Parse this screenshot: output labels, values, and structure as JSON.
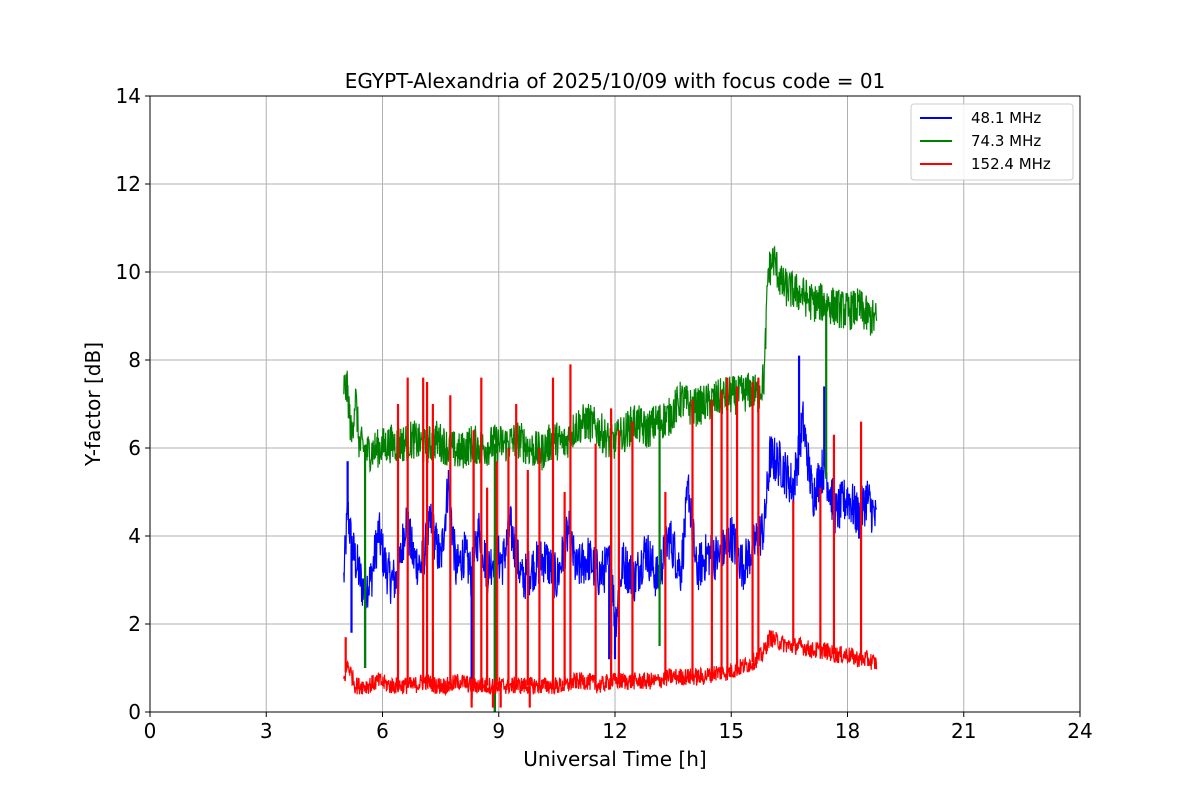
{
  "chart_data": {
    "type": "line",
    "title": "EGYPT-Alexandria of 2025/10/09 with focus code = 01",
    "xlabel": "Universal Time [h]",
    "ylabel": "Y-factor [dB]",
    "xlim": [
      0,
      24
    ],
    "ylim": [
      0,
      14
    ],
    "xticks": [
      0,
      3,
      6,
      9,
      12,
      15,
      18,
      21,
      24
    ],
    "yticks": [
      0,
      2,
      4,
      6,
      8,
      10,
      12,
      14
    ],
    "grid": true,
    "legend_position": "top-right",
    "series": [
      {
        "name": "  48.1 MHz",
        "color": "#0000ff",
        "x": [
          5.0,
          5.1,
          5.2,
          5.35,
          5.5,
          5.7,
          5.9,
          6.05,
          6.2,
          6.4,
          6.6,
          6.8,
          7.0,
          7.25,
          7.5,
          7.7,
          7.9,
          8.1,
          8.3,
          8.5,
          8.7,
          8.9,
          9.1,
          9.3,
          9.6,
          9.9,
          10.2,
          10.5,
          10.8,
          11.0,
          11.3,
          11.6,
          11.9,
          12.0,
          12.2,
          12.5,
          12.8,
          13.1,
          13.4,
          13.7,
          13.9,
          14.1,
          14.4,
          14.7,
          15.0,
          15.3,
          15.6,
          15.85,
          16.0,
          16.3,
          16.6,
          16.85,
          17.1,
          17.4,
          17.7,
          18.0,
          18.3,
          18.5,
          18.75
        ],
        "y": [
          3.0,
          4.6,
          3.8,
          3.3,
          2.8,
          3.0,
          4.1,
          3.4,
          3.0,
          3.0,
          4.4,
          3.5,
          3.3,
          4.3,
          3.4,
          5.2,
          3.2,
          3.6,
          3.1,
          4.2,
          3.2,
          3.6,
          3.4,
          4.2,
          3.0,
          3.3,
          3.5,
          3.0,
          4.1,
          3.2,
          3.5,
          3.1,
          3.4,
          2.0,
          3.4,
          3.0,
          3.7,
          3.0,
          4.0,
          3.2,
          5.1,
          3.2,
          3.6,
          3.5,
          4.0,
          3.3,
          3.8,
          4.2,
          5.8,
          5.6,
          5.1,
          6.6,
          4.9,
          5.6,
          4.5,
          4.9,
          4.4,
          4.9,
          4.3
        ]
      },
      {
        "name": "  74.3 MHz",
        "color": "#008000",
        "x": [
          5.0,
          5.1,
          5.2,
          5.3,
          5.4,
          5.6,
          5.9,
          6.2,
          6.5,
          6.8,
          7.1,
          7.4,
          7.7,
          8.0,
          8.3,
          8.6,
          8.9,
          9.2,
          9.5,
          9.8,
          10.1,
          10.4,
          10.7,
          11.0,
          11.3,
          11.6,
          11.9,
          12.2,
          12.5,
          12.8,
          13.1,
          13.4,
          13.7,
          14.0,
          14.3,
          14.6,
          14.9,
          15.2,
          15.5,
          15.7,
          15.85,
          15.95,
          16.1,
          16.3,
          16.5,
          16.8,
          17.1,
          17.4,
          17.7,
          18.0,
          18.3,
          18.5,
          18.75
        ],
        "y": [
          7.4,
          7.3,
          6.2,
          7.2,
          6.1,
          5.9,
          6.0,
          6.1,
          6.1,
          6.2,
          6.0,
          6.2,
          6.0,
          5.9,
          6.1,
          6.0,
          6.1,
          6.1,
          6.2,
          6.0,
          5.9,
          6.2,
          6.1,
          6.5,
          6.6,
          6.4,
          6.1,
          6.3,
          6.6,
          6.4,
          6.6,
          6.7,
          7.1,
          6.9,
          7.0,
          7.1,
          7.2,
          7.2,
          7.3,
          7.2,
          7.6,
          10.0,
          10.3,
          9.7,
          9.6,
          9.5,
          9.3,
          9.3,
          9.2,
          9.1,
          9.2,
          9.0,
          8.9
        ]
      },
      {
        "name": "152.4 MHz",
        "color": "#ff0000",
        "x": [
          5.0,
          5.1,
          5.3,
          5.6,
          5.9,
          6.2,
          6.5,
          6.8,
          7.1,
          7.4,
          7.7,
          8.0,
          8.3,
          8.6,
          8.9,
          9.2,
          9.5,
          9.8,
          10.1,
          10.4,
          10.7,
          11.0,
          11.3,
          11.6,
          11.9,
          12.2,
          12.5,
          12.8,
          13.1,
          13.4,
          13.7,
          14.0,
          14.3,
          14.6,
          14.9,
          15.2,
          15.5,
          15.8,
          16.0,
          16.2,
          16.5,
          16.8,
          17.1,
          17.4,
          17.7,
          18.0,
          18.3,
          18.5,
          18.75
        ],
        "y": [
          0.7,
          1.1,
          0.6,
          0.6,
          0.7,
          0.6,
          0.6,
          0.6,
          0.7,
          0.6,
          0.6,
          0.7,
          0.6,
          0.6,
          0.6,
          0.6,
          0.6,
          0.6,
          0.6,
          0.6,
          0.6,
          0.7,
          0.7,
          0.6,
          0.7,
          0.7,
          0.7,
          0.7,
          0.7,
          0.8,
          0.8,
          0.8,
          0.8,
          0.9,
          0.9,
          1.0,
          1.1,
          1.3,
          1.7,
          1.6,
          1.5,
          1.5,
          1.4,
          1.4,
          1.3,
          1.3,
          1.2,
          1.2,
          1.1
        ]
      }
    ],
    "spikes": [
      {
        "series": 2,
        "x": [
          5.05,
          6.4,
          6.65,
          7.05,
          7.15,
          7.3,
          7.75,
          8.35,
          8.55,
          8.7,
          8.95,
          9.25,
          9.45,
          9.75,
          10.05,
          10.4,
          10.7,
          10.85,
          11.5,
          11.9,
          12.1,
          12.45,
          13.3,
          14.0,
          14.5,
          14.75,
          14.9,
          15.15,
          15.55,
          15.7,
          16.6,
          17.3,
          17.65,
          18.35
        ],
        "y": [
          1.7,
          7.0,
          7.6,
          7.6,
          7.5,
          7.0,
          7.2,
          6.4,
          7.6,
          5.1,
          5.7,
          6.0,
          7.0,
          5.5,
          6.0,
          7.6,
          5.0,
          7.9,
          6.1,
          6.9,
          6.4,
          6.6,
          5.0,
          7.1,
          7.1,
          7.3,
          7.6,
          7.4,
          7.5,
          7.6,
          4.8,
          5.1,
          6.3,
          6.6
        ]
      },
      {
        "series": 2,
        "x": [
          8.3,
          8.85,
          9.05,
          9.8
        ],
        "y": [
          0.1,
          0.1,
          0.1,
          0.1
        ],
        "down": true
      },
      {
        "series": 1,
        "x": [
          5.55,
          8.35,
          8.9,
          11.9,
          13.15,
          17.45
        ],
        "y": [
          1.0,
          0.8,
          0.0,
          1.3,
          1.5,
          5.3
        ],
        "down": true
      },
      {
        "series": 0,
        "x": [
          5.1,
          5.2,
          5.55,
          8.3,
          8.9,
          11.85,
          12.0,
          16.75,
          17.4
        ],
        "y": [
          5.7,
          1.8,
          1.0,
          0.3,
          0.0,
          1.2,
          1.2,
          8.1,
          7.4
        ]
      }
    ]
  }
}
